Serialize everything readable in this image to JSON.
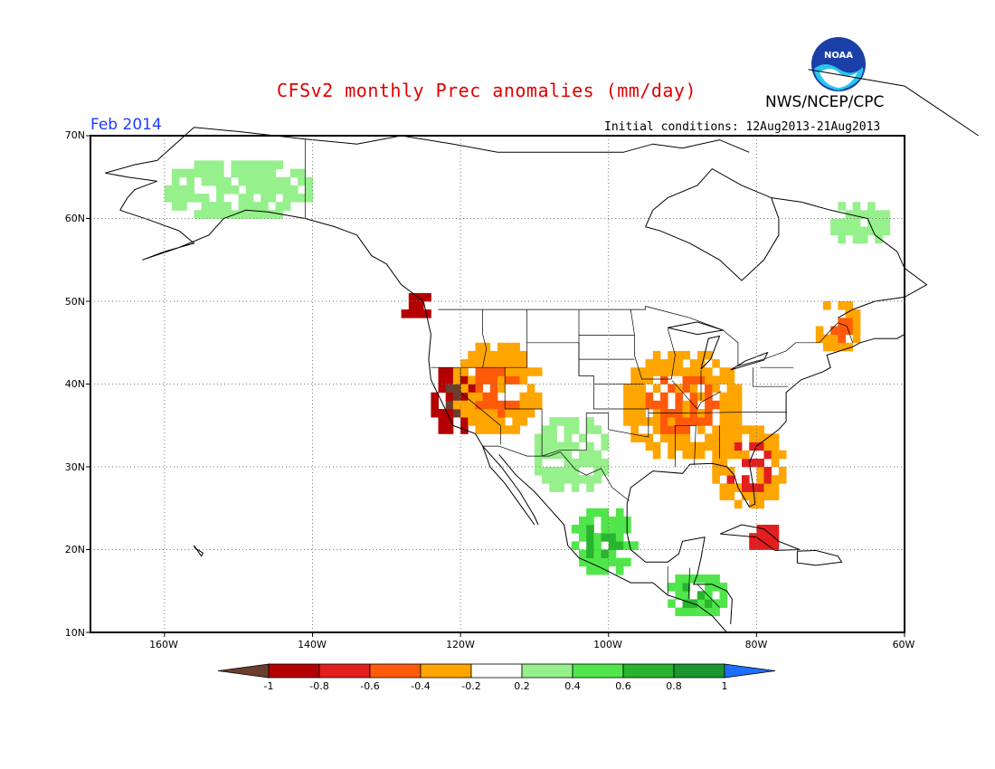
{
  "title": "CFSv2 monthly Prec anomalies (mm/day)",
  "organization": "NWS/NCEP/CPC",
  "logo_text": "NOAA",
  "month_label": "Feb 2014",
  "initial_conditions": "Initial conditions: 12Aug2013-21Aug2013",
  "lat_ticks": [
    "70N",
    "60N",
    "50N",
    "40N",
    "30N",
    "20N",
    "10N"
  ],
  "lon_ticks": [
    "160W",
    "140W",
    "120W",
    "100W",
    "80W",
    "60W"
  ],
  "colorbar": {
    "labels": [
      "-1",
      "-0.8",
      "-0.6",
      "-0.4",
      "-0.2",
      "0.2",
      "0.4",
      "0.6",
      "0.8",
      "1"
    ],
    "colors": [
      "#6b3d2e",
      "#b40000",
      "#e21e1e",
      "#ff5a0a",
      "#ffa500",
      "#ffffff",
      "#96f08c",
      "#50e64b",
      "#28b42d",
      "#19962d",
      "#1e6eff"
    ]
  },
  "chart_data": {
    "type": "heatmap",
    "variable": "Prec anomalies",
    "units": "mm/day",
    "levels": [
      -1,
      -0.8,
      -0.6,
      -0.4,
      -0.2,
      0.2,
      0.4,
      0.6,
      0.8,
      1
    ],
    "lat_range": [
      10,
      70
    ],
    "lon_range": [
      -170,
      -60
    ],
    "grid": true,
    "anomaly_regions": [
      {
        "region": "California coast",
        "lat": [
          34,
          42
        ],
        "lon": [
          -124,
          -118
        ],
        "category": "-1 to -0.8"
      },
      {
        "region": "Pacific Northwest coast",
        "lat": [
          48,
          51
        ],
        "lon": [
          -128,
          -124
        ],
        "category": "-0.8 to -0.6"
      },
      {
        "region": "Great Basin / Southwest",
        "lat": [
          34,
          45
        ],
        "lon": [
          -121,
          -109
        ],
        "category": "-0.4 to -0.2"
      },
      {
        "region": "Central Plains / Ohio Valley",
        "lat": [
          31,
          44
        ],
        "lon": [
          -98,
          -82
        ],
        "category": "-0.6 to -0.2"
      },
      {
        "region": "Southeast / Florida",
        "lat": [
          25,
          35
        ],
        "lon": [
          -86,
          -76
        ],
        "category": "-0.8 to -0.2"
      },
      {
        "region": "Northeast Canada",
        "lat": [
          44,
          50
        ],
        "lon": [
          -72,
          -66
        ],
        "category": "-0.4 to -0.2"
      },
      {
        "region": "Caribbean (Cuba)",
        "lat": [
          20,
          23
        ],
        "lon": [
          -82,
          -76
        ],
        "category": "-0.6 to -0.4"
      },
      {
        "region": "Alaska interior",
        "lat": [
          60,
          67
        ],
        "lon": [
          -160,
          -140
        ],
        "category": "0.2 to 0.4"
      },
      {
        "region": "Southern Mexico",
        "lat": [
          17,
          25
        ],
        "lon": [
          -105,
          -96
        ],
        "category": "0.2 to 0.8"
      },
      {
        "region": "Central America",
        "lat": [
          12,
          17
        ],
        "lon": [
          -92,
          -84
        ],
        "category": "0.2 to 0.6"
      },
      {
        "region": "Labrador",
        "lat": [
          57,
          62
        ],
        "lon": [
          -70,
          -62
        ],
        "category": "0.2 to 0.4"
      },
      {
        "region": "Northern Mexico / Texas",
        "lat": [
          27,
          36
        ],
        "lon": [
          -110,
          -100
        ],
        "category": "0.2 to 0.4"
      }
    ]
  }
}
